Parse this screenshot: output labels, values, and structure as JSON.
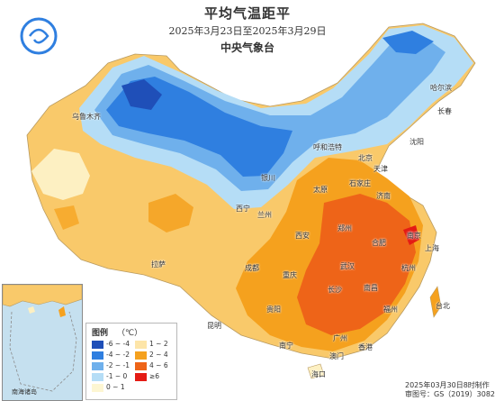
{
  "header": {
    "title": "平均气温距平",
    "date_range": "2025年3月23日至2025年3月29日",
    "organization": "中央气象台"
  },
  "legend": {
    "title": "图例",
    "unit": "（℃）",
    "items": [
      {
        "label": "-6 ~ -4",
        "color": "#1f4fb8"
      },
      {
        "label": "1 ~ 2",
        "color": "#fde5a8"
      },
      {
        "label": "-4 ~ -2",
        "color": "#2f7fe0"
      },
      {
        "label": "2 ~ 4",
        "color": "#f5a11e"
      },
      {
        "label": "-2 ~ -1",
        "color": "#6fb0ec"
      },
      {
        "label": "4 ~ 6",
        "color": "#ee6418"
      },
      {
        "label": "-1 ~ 0",
        "color": "#b5ddf6"
      },
      {
        "label": "≥6",
        "color": "#e41b14"
      },
      {
        "label": "0 ~ 1",
        "color": "#fdf6d2"
      }
    ]
  },
  "cities": [
    {
      "name": "乌鲁木齐"
    },
    {
      "name": "哈尔滨"
    },
    {
      "name": "长春"
    },
    {
      "name": "沈阳"
    },
    {
      "name": "呼和浩特"
    },
    {
      "name": "北京"
    },
    {
      "name": "天津"
    },
    {
      "name": "银川"
    },
    {
      "name": "石家庄"
    },
    {
      "name": "太原"
    },
    {
      "name": "济南"
    },
    {
      "name": "西宁"
    },
    {
      "name": "兰州"
    },
    {
      "name": "郑州"
    },
    {
      "name": "西安"
    },
    {
      "name": "南京"
    },
    {
      "name": "合肥"
    },
    {
      "name": "上海"
    },
    {
      "name": "拉萨"
    },
    {
      "name": "成都"
    },
    {
      "name": "武汉"
    },
    {
      "name": "杭州"
    },
    {
      "name": "重庆"
    },
    {
      "name": "长沙"
    },
    {
      "name": "南昌"
    },
    {
      "name": "贵阳"
    },
    {
      "name": "福州"
    },
    {
      "name": "台北"
    },
    {
      "name": "昆明"
    },
    {
      "name": "南宁"
    },
    {
      "name": "广州"
    },
    {
      "name": "香港"
    },
    {
      "name": "澳门"
    },
    {
      "name": "海口"
    }
  ],
  "inset": {
    "label": "南海诸岛"
  },
  "footer": {
    "line1": "2025年03月30日8时制作",
    "line2": "审图号：GS（2019）3082号"
  },
  "colors": {
    "sea": "#ffffff",
    "land_base": "#f9c96a",
    "coldest": "#1f4fb8",
    "warmest": "#e41b14"
  }
}
